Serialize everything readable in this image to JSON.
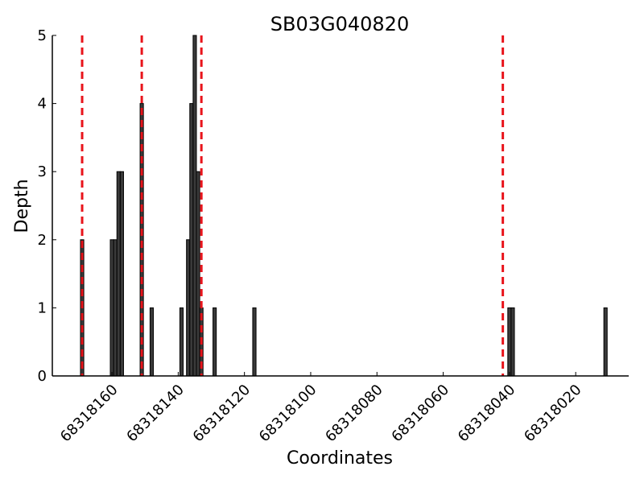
{
  "chart_data": {
    "type": "bar",
    "title": "SB03G040820",
    "xlabel": "Coordinates",
    "ylabel": "Depth",
    "x_reversed": true,
    "xlim": [
      68318178,
      68318004
    ],
    "ylim": [
      0,
      5
    ],
    "xticks": [
      68318160,
      68318140,
      68318120,
      68318100,
      68318080,
      68318060,
      68318040,
      68318020
    ],
    "yticks": [
      0,
      1,
      2,
      3,
      4,
      5
    ],
    "grid": false,
    "bar_color": "#3a3a3a",
    "marker_color": "#e8141b",
    "series": [
      {
        "x": [
          68318169,
          68318160,
          68318159,
          68318158,
          68318157,
          68318151,
          68318148,
          68318139,
          68318137,
          68318136,
          68318135,
          68318134,
          68318133,
          68318129,
          68318117,
          68318040,
          68318039,
          68318011
        ],
        "values": [
          2,
          2,
          2,
          3,
          3,
          4,
          1,
          1,
          2,
          4,
          5,
          3,
          1,
          1,
          1,
          1,
          1,
          1
        ]
      }
    ],
    "markers": [
      68318169,
      68318151,
      68318133,
      68318042
    ]
  }
}
